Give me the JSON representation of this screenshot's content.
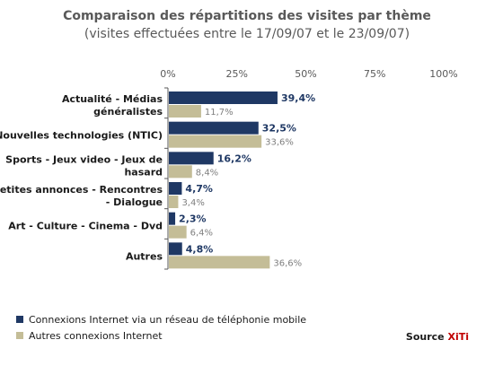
{
  "chart_data": {
    "type": "bar",
    "orientation": "horizontal",
    "title": "Comparaison des répartitions des visites par thème",
    "subtitle": "(visites effectuées entre le 17/09/07 et le 23/09/07)",
    "categories": [
      [
        "Actualité - Médias",
        "généralistes"
      ],
      [
        "Nouvelles technologies (NTIC)"
      ],
      [
        "Sports - Jeux video - Jeux de",
        "hasard"
      ],
      [
        "Petites annonces - Rencontres",
        "- Dialogue"
      ],
      [
        "Art - Culture - Cinema - Dvd"
      ],
      [
        "Autres"
      ]
    ],
    "series": [
      {
        "name": "Connexions Internet via un réseau de téléphonie mobile",
        "color": "#1f3864",
        "values": [
          39.4,
          32.5,
          16.2,
          4.7,
          2.3,
          4.8
        ],
        "labels": [
          "39,4%",
          "32,5%",
          "16,2%",
          "4,7%",
          "2,3%",
          "4,8%"
        ]
      },
      {
        "name": "Autres connexions Internet",
        "color": "#c4bd97",
        "values": [
          11.7,
          33.6,
          8.4,
          3.4,
          6.4,
          36.6
        ],
        "labels": [
          "11,7%",
          "33,6%",
          "8,4%",
          "3,4%",
          "6,4%",
          "36,6%"
        ]
      }
    ],
    "xticks": [
      "0%",
      "25%",
      "50%",
      "75%",
      "100%"
    ],
    "xlim": [
      0,
      100
    ],
    "grid": false,
    "legend_position": "bottom-left"
  },
  "source": {
    "prefix": "Source ",
    "brand": "XiTi"
  }
}
